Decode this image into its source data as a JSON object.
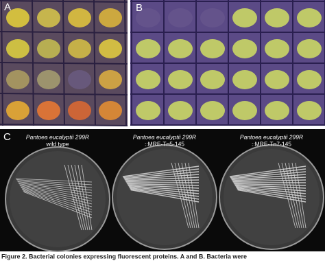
{
  "panels": [
    {
      "label": "A"
    },
    {
      "label": "B"
    },
    {
      "label": "C"
    }
  ],
  "plates": [
    {
      "strain": "Pantoea eucalyptii 299R",
      "genotype": "wild type"
    },
    {
      "strain": "Pantoea eucalyptii 299R",
      "genotype": "::MRE-Tn5-145"
    },
    {
      "strain": "Pantoea eucalyptii 299R",
      "genotype": "::MRE-Tn7-145"
    }
  ],
  "caption": "Figure 2. Bacterial colonies expressing fluorescent proteins. A and B. Bacteria were"
}
